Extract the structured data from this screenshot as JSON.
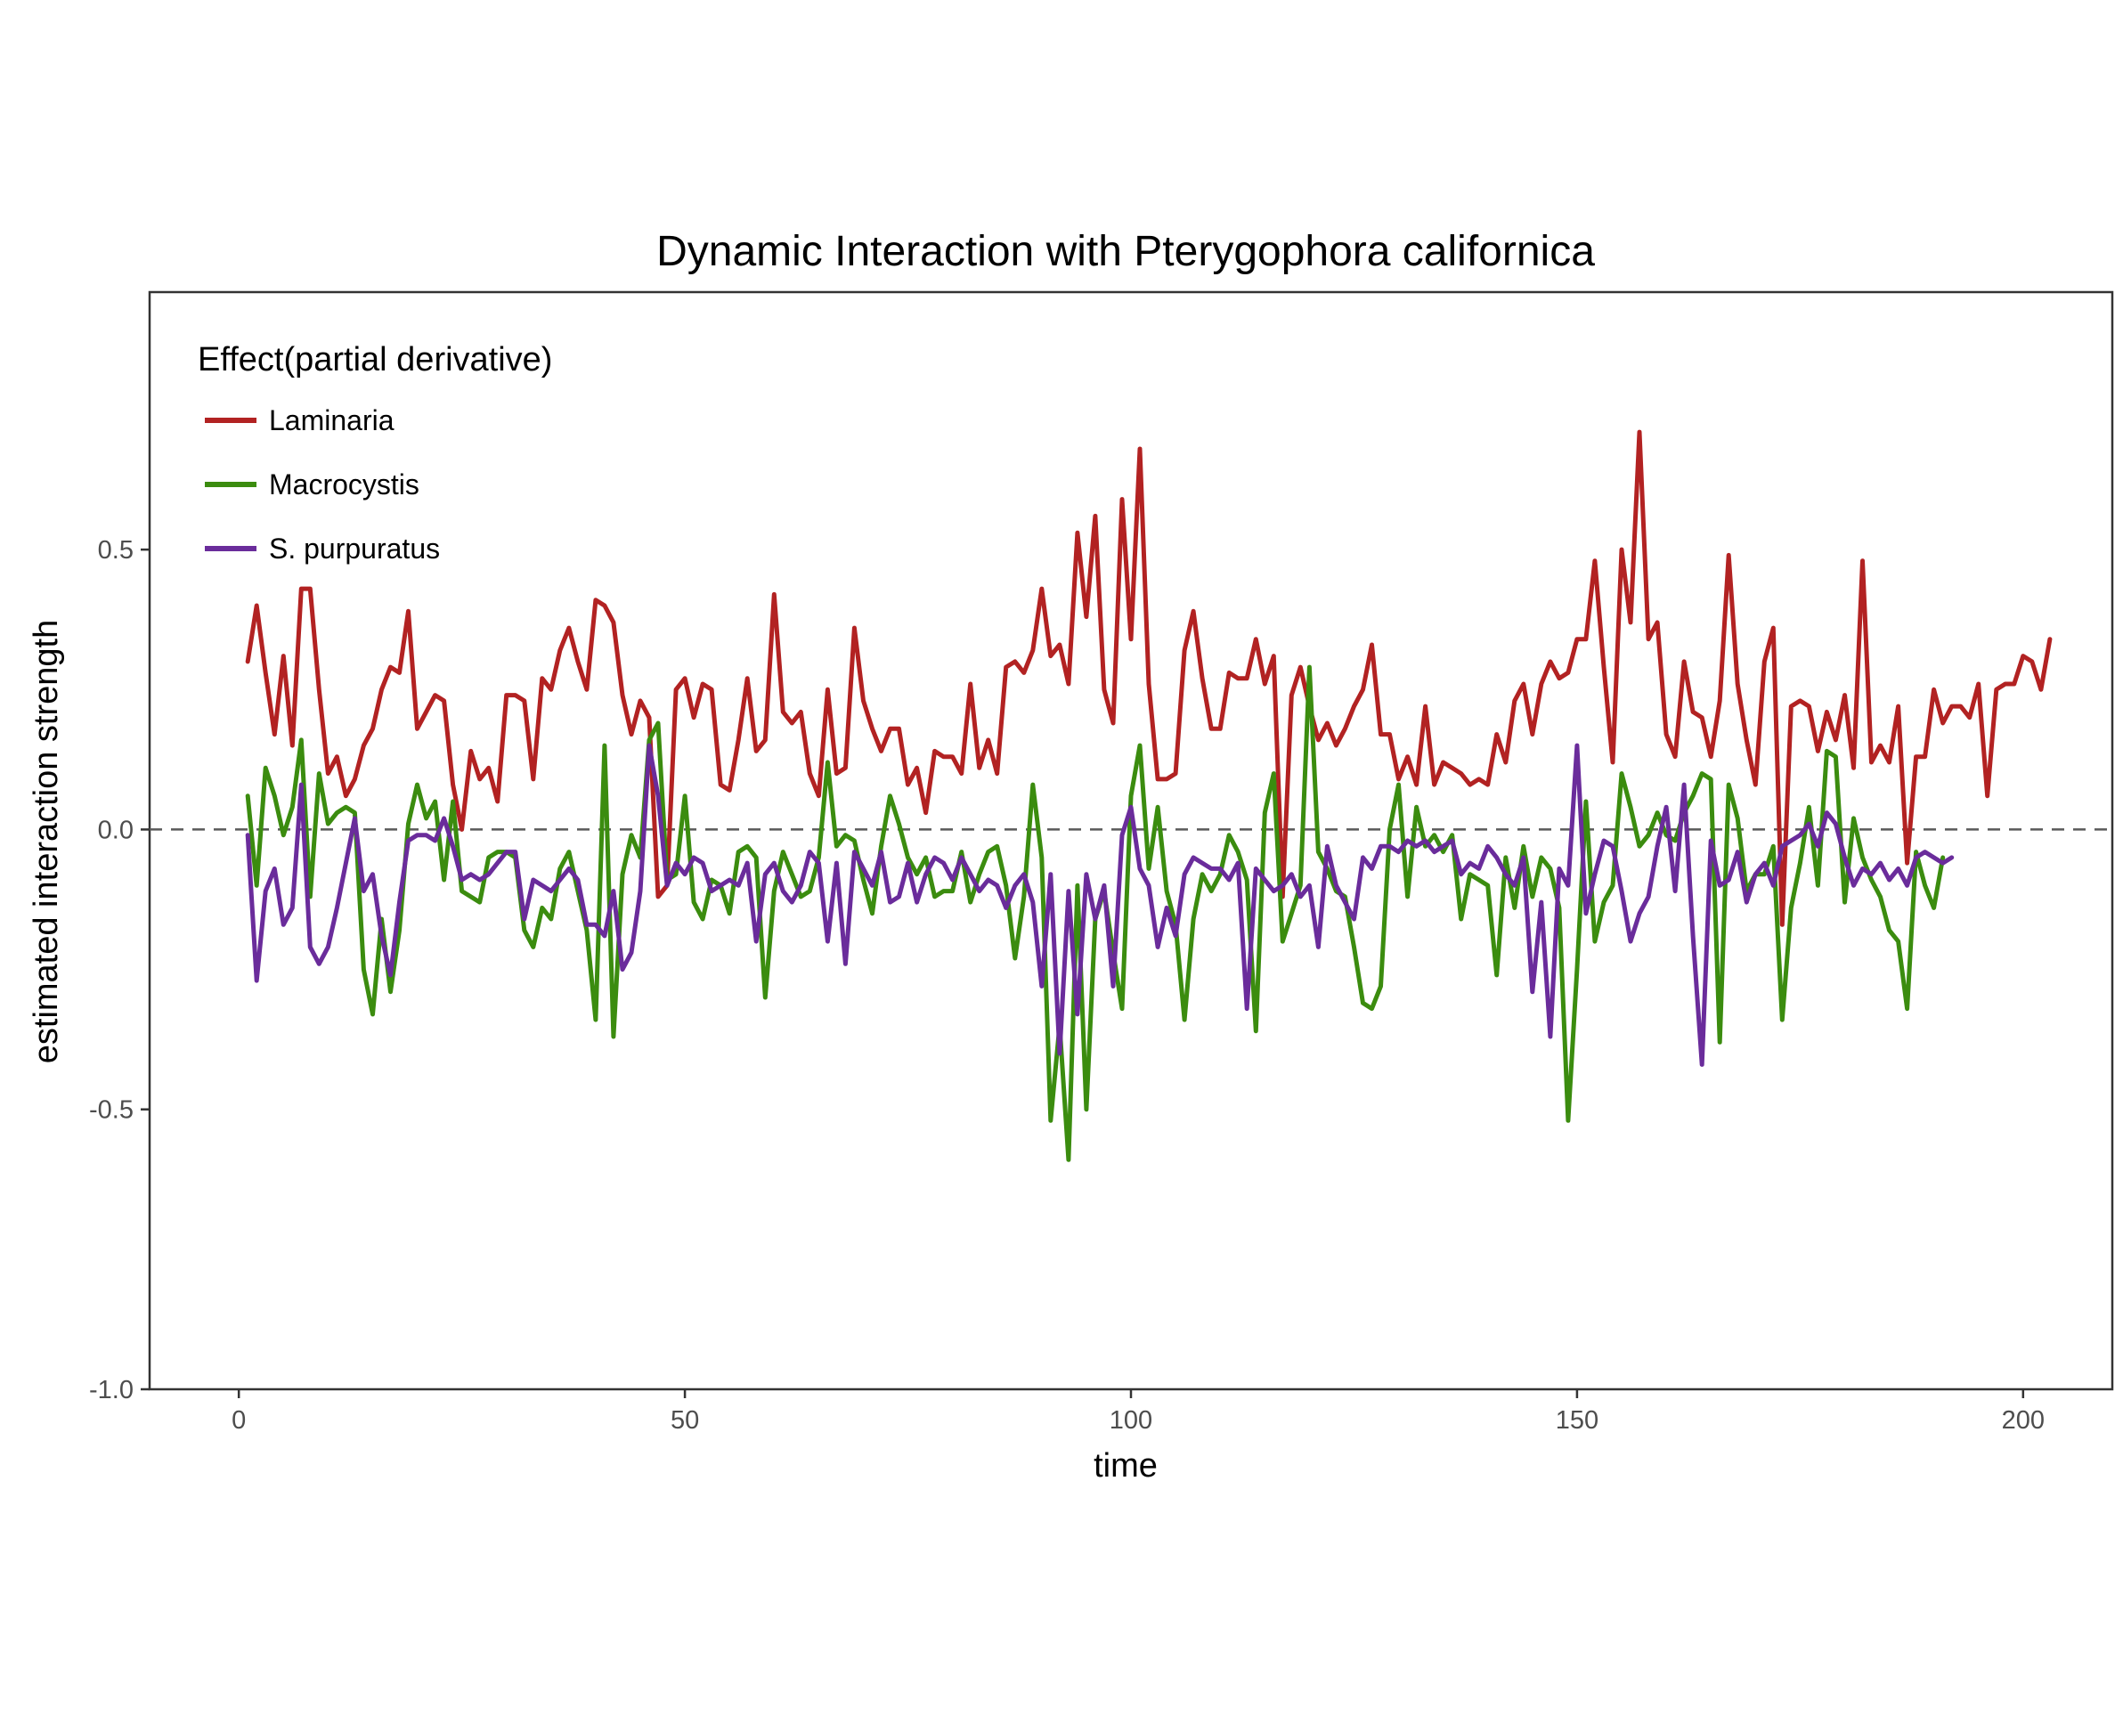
{
  "chart_data": {
    "type": "line",
    "title": "Dynamic Interaction with Pterygophora californica",
    "xlabel": "time",
    "ylabel": "estimated interaction strength",
    "xlim": [
      -10,
      210
    ],
    "ylim": [
      -1.0,
      0.96
    ],
    "x_ticks": [
      0,
      50,
      100,
      150,
      200
    ],
    "x_tick_labels": [
      "0",
      "50",
      "100",
      "150",
      "200"
    ],
    "y_ticks": [
      -1.0,
      -0.5,
      0.0,
      0.5
    ],
    "y_tick_labels": [
      "-1.0",
      "-0.5",
      "0.0",
      "0.5"
    ],
    "reference_line": {
      "y": 0,
      "style": "dashed",
      "color": "#595959"
    },
    "grid": false,
    "legend": {
      "title": "Effect(partial derivative)",
      "position": "top-left"
    },
    "x_start": 1,
    "x_step": 1,
    "series": [
      {
        "name": "Laminaria",
        "color": "#B22222",
        "values": [
          0.3,
          0.4,
          0.28,
          0.17,
          0.31,
          0.15,
          0.43,
          0.43,
          0.25,
          0.1,
          0.13,
          0.06,
          0.09,
          0.15,
          0.18,
          0.25,
          0.29,
          0.28,
          0.39,
          0.18,
          0.21,
          0.24,
          0.23,
          0.08,
          0.0,
          0.14,
          0.09,
          0.11,
          0.05,
          0.24,
          0.24,
          0.23,
          0.09,
          0.27,
          0.25,
          0.32,
          0.36,
          0.3,
          0.25,
          0.41,
          0.4,
          0.37,
          0.24,
          0.17,
          0.23,
          0.2,
          -0.12,
          -0.1,
          0.25,
          0.27,
          0.2,
          0.26,
          0.25,
          0.08,
          0.07,
          0.16,
          0.27,
          0.14,
          0.16,
          0.42,
          0.21,
          0.19,
          0.21,
          0.1,
          0.06,
          0.25,
          0.1,
          0.11,
          0.36,
          0.23,
          0.18,
          0.14,
          0.18,
          0.18,
          0.08,
          0.11,
          0.03,
          0.14,
          0.13,
          0.13,
          0.1,
          0.26,
          0.11,
          0.16,
          0.1,
          0.29,
          0.3,
          0.28,
          0.32,
          0.43,
          0.31,
          0.33,
          0.26,
          0.53,
          0.38,
          0.56,
          0.25,
          0.19,
          0.59,
          0.34,
          0.68,
          0.26,
          0.09,
          0.09,
          0.1,
          0.32,
          0.39,
          0.27,
          0.18,
          0.18,
          0.28,
          0.27,
          0.27,
          0.34,
          0.26,
          0.31,
          -0.12,
          0.24,
          0.29,
          0.22,
          0.16,
          0.19,
          0.15,
          0.18,
          0.22,
          0.25,
          0.33,
          0.17,
          0.17,
          0.09,
          0.13,
          0.08,
          0.22,
          0.08,
          0.12,
          0.11,
          0.1,
          0.08,
          0.09,
          0.08,
          0.17,
          0.12,
          0.23,
          0.26,
          0.17,
          0.26,
          0.3,
          0.27,
          0.28,
          0.34,
          0.34,
          0.48,
          0.29,
          0.12,
          0.5,
          0.37,
          0.71,
          0.34,
          0.37,
          0.17,
          0.13,
          0.3,
          0.21,
          0.2,
          0.13,
          0.23,
          0.49,
          0.26,
          0.16,
          0.08,
          0.3,
          0.36,
          -0.17,
          0.22,
          0.23,
          0.22,
          0.14,
          0.21,
          0.16,
          0.24,
          0.11,
          0.48,
          0.12,
          0.15,
          0.12,
          0.22,
          -0.06,
          0.13,
          0.13,
          0.25,
          0.19,
          0.22,
          0.22,
          0.2,
          0.26,
          0.06,
          0.25,
          0.26,
          0.26,
          0.31,
          0.3,
          0.25,
          0.34
        ]
      },
      {
        "name": "Macrocystis",
        "color": "#3B8C0F",
        "values": [
          0.06,
          -0.1,
          0.11,
          0.06,
          -0.01,
          0.04,
          0.16,
          -0.12,
          0.1,
          0.01,
          0.03,
          0.04,
          0.03,
          -0.25,
          -0.33,
          -0.16,
          -0.29,
          -0.18,
          0.01,
          0.08,
          0.02,
          0.05,
          -0.09,
          0.05,
          -0.11,
          -0.12,
          -0.13,
          -0.05,
          -0.04,
          -0.04,
          -0.05,
          -0.18,
          -0.21,
          -0.14,
          -0.16,
          -0.07,
          -0.04,
          -0.11,
          -0.18,
          -0.34,
          0.15,
          -0.37,
          -0.08,
          -0.01,
          -0.05,
          0.16,
          0.19,
          -0.09,
          -0.08,
          0.06,
          -0.13,
          -0.16,
          -0.09,
          -0.1,
          -0.15,
          -0.04,
          -0.03,
          -0.05,
          -0.3,
          -0.11,
          -0.04,
          -0.08,
          -0.12,
          -0.11,
          -0.05,
          0.12,
          -0.03,
          -0.01,
          -0.02,
          -0.09,
          -0.15,
          -0.03,
          0.06,
          0.01,
          -0.05,
          -0.08,
          -0.05,
          -0.12,
          -0.11,
          -0.11,
          -0.04,
          -0.13,
          -0.08,
          -0.04,
          -0.03,
          -0.1,
          -0.23,
          -0.12,
          0.08,
          -0.05,
          -0.52,
          -0.35,
          -0.59,
          -0.1,
          -0.5,
          -0.16,
          -0.11,
          -0.22,
          -0.32,
          0.06,
          0.15,
          -0.07,
          0.04,
          -0.11,
          -0.17,
          -0.34,
          -0.16,
          -0.08,
          -0.11,
          -0.08,
          -0.01,
          -0.04,
          -0.09,
          -0.36,
          0.03,
          0.1,
          -0.2,
          -0.15,
          -0.1,
          0.29,
          -0.04,
          -0.07,
          -0.11,
          -0.12,
          -0.21,
          -0.31,
          -0.32,
          -0.28,
          0.0,
          0.08,
          -0.12,
          0.04,
          -0.03,
          -0.01,
          -0.04,
          -0.01,
          -0.16,
          -0.08,
          -0.09,
          -0.1,
          -0.26,
          -0.05,
          -0.14,
          -0.03,
          -0.12,
          -0.05,
          -0.07,
          -0.14,
          -0.52,
          -0.25,
          0.05,
          -0.2,
          -0.13,
          -0.1,
          0.1,
          0.04,
          -0.03,
          -0.01,
          0.03,
          -0.01,
          -0.02,
          0.03,
          0.06,
          0.1,
          0.09,
          -0.38,
          0.08,
          0.02,
          -0.11,
          -0.08,
          -0.08,
          -0.03,
          -0.34,
          -0.14,
          -0.06,
          0.04,
          -0.1,
          0.14,
          0.13,
          -0.13,
          0.02,
          -0.05,
          -0.09,
          -0.12,
          -0.18,
          -0.2,
          -0.32,
          -0.04,
          -0.1,
          -0.14,
          -0.05
        ]
      },
      {
        "name": "S. purpuratus",
        "color": "#6A2C9B",
        "values": [
          -0.01,
          -0.27,
          -0.11,
          -0.07,
          -0.17,
          -0.14,
          0.08,
          -0.21,
          -0.24,
          -0.21,
          -0.14,
          -0.06,
          0.02,
          -0.11,
          -0.08,
          -0.19,
          -0.26,
          -0.13,
          -0.02,
          -0.01,
          -0.01,
          -0.02,
          0.02,
          -0.03,
          -0.09,
          -0.08,
          -0.09,
          -0.08,
          -0.06,
          -0.04,
          -0.04,
          -0.16,
          -0.09,
          -0.1,
          -0.11,
          -0.09,
          -0.07,
          -0.09,
          -0.17,
          -0.17,
          -0.19,
          -0.11,
          -0.25,
          -0.22,
          -0.11,
          0.15,
          0.06,
          -0.1,
          -0.06,
          -0.08,
          -0.05,
          -0.06,
          -0.11,
          -0.1,
          -0.09,
          -0.1,
          -0.06,
          -0.2,
          -0.08,
          -0.06,
          -0.11,
          -0.13,
          -0.1,
          -0.04,
          -0.06,
          -0.2,
          -0.06,
          -0.24,
          -0.04,
          -0.07,
          -0.1,
          -0.04,
          -0.13,
          -0.12,
          -0.06,
          -0.13,
          -0.08,
          -0.05,
          -0.06,
          -0.09,
          -0.05,
          -0.08,
          -0.11,
          -0.09,
          -0.1,
          -0.14,
          -0.1,
          -0.08,
          -0.13,
          -0.28,
          -0.08,
          -0.4,
          -0.11,
          -0.33,
          -0.08,
          -0.16,
          -0.1,
          -0.28,
          -0.01,
          0.04,
          -0.07,
          -0.1,
          -0.21,
          -0.14,
          -0.19,
          -0.08,
          -0.05,
          -0.06,
          -0.07,
          -0.07,
          -0.09,
          -0.06,
          -0.32,
          -0.07,
          -0.09,
          -0.11,
          -0.1,
          -0.08,
          -0.12,
          -0.1,
          -0.21,
          -0.03,
          -0.1,
          -0.13,
          -0.16,
          -0.05,
          -0.07,
          -0.03,
          -0.03,
          -0.04,
          -0.02,
          -0.03,
          -0.02,
          -0.04,
          -0.03,
          -0.02,
          -0.08,
          -0.06,
          -0.07,
          -0.03,
          -0.05,
          -0.08,
          -0.1,
          -0.05,
          -0.29,
          -0.13,
          -0.37,
          -0.07,
          -0.1,
          0.15,
          -0.15,
          -0.08,
          -0.02,
          -0.03,
          -0.11,
          -0.2,
          -0.15,
          -0.12,
          -0.03,
          0.04,
          -0.11,
          0.08,
          -0.19,
          -0.42,
          -0.02,
          -0.1,
          -0.09,
          -0.04,
          -0.13,
          -0.08,
          -0.06,
          -0.1,
          -0.03,
          -0.02,
          -0.01,
          0.01,
          -0.03,
          0.03,
          0.01,
          -0.05,
          -0.1,
          -0.07,
          -0.08,
          -0.06,
          -0.09,
          -0.07,
          -0.1,
          -0.05,
          -0.04,
          -0.05,
          -0.06,
          -0.05
        ]
      }
    ]
  }
}
